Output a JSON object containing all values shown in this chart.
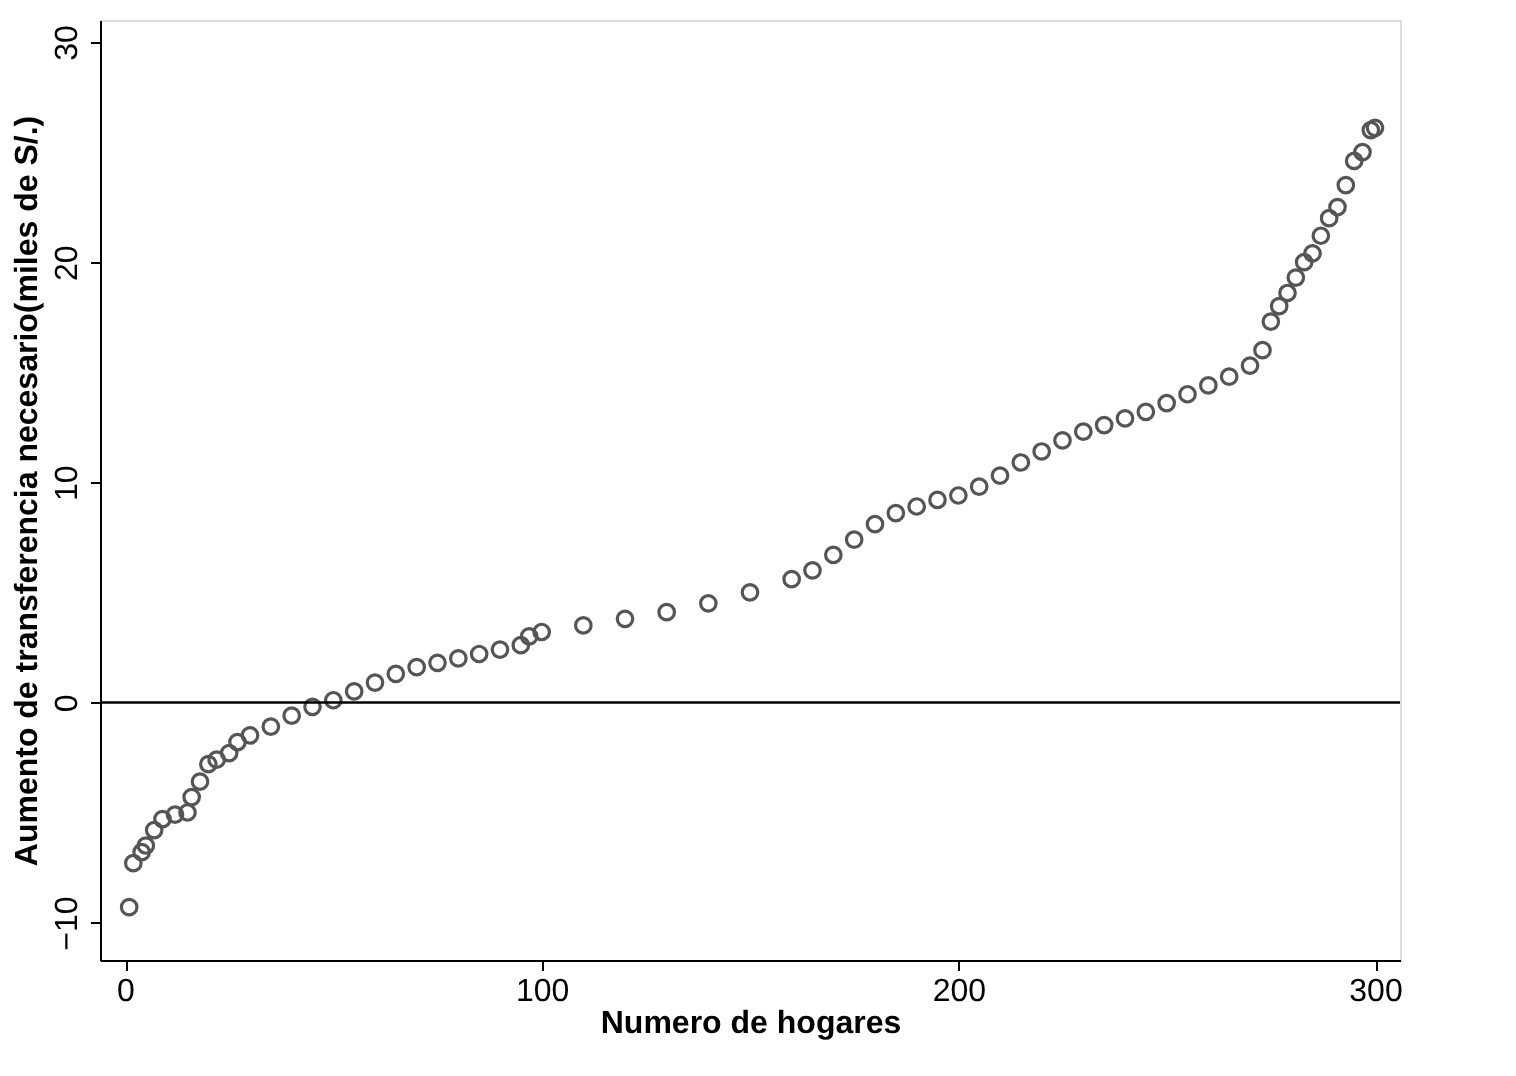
{
  "chart_data": {
    "type": "scatter",
    "xlabel": "Numero de hogares",
    "ylabel": "Aumento de transferencia necesario(miles de S/.)",
    "x": [
      1,
      2,
      4,
      5,
      7,
      9,
      12,
      15,
      16,
      18,
      20,
      22,
      25,
      27,
      30,
      35,
      40,
      45,
      50,
      55,
      60,
      65,
      70,
      75,
      80,
      85,
      90,
      95,
      97,
      100,
      110,
      120,
      130,
      140,
      150,
      160,
      165,
      170,
      175,
      180,
      185,
      190,
      195,
      200,
      205,
      210,
      215,
      220,
      225,
      230,
      235,
      240,
      245,
      250,
      255,
      260,
      265,
      270,
      273,
      275,
      277,
      279,
      281,
      283,
      285,
      287,
      289,
      291,
      293,
      295,
      297,
      299,
      300
    ],
    "series": [
      {
        "color": "#555555",
        "marker": "circle",
        "values": [
          -9.3,
          -7.3,
          -6.8,
          -6.5,
          -5.8,
          -5.3,
          -5.1,
          -5.0,
          -4.3,
          -3.6,
          -2.8,
          -2.6,
          -2.3,
          -1.8,
          -1.5,
          -1.1,
          -0.6,
          -0.2,
          0.1,
          0.5,
          0.9,
          1.3,
          1.6,
          1.8,
          2.0,
          2.2,
          2.4,
          2.6,
          3.0,
          3.2,
          3.5,
          3.8,
          4.1,
          4.5,
          5.0,
          5.6,
          6.0,
          6.7,
          7.4,
          8.1,
          8.6,
          8.9,
          9.2,
          9.4,
          9.8,
          10.3,
          10.9,
          11.4,
          11.9,
          12.3,
          12.6,
          12.9,
          13.2,
          13.6,
          14.0,
          14.4,
          14.8,
          15.3,
          16.0,
          17.3,
          18.0,
          18.6,
          19.3,
          20.0,
          20.4,
          21.2,
          22.0,
          22.5,
          23.5,
          24.6,
          25.0,
          26.0,
          26.1
        ]
      }
    ],
    "xlim": [
      -6,
      306
    ],
    "xticks": [
      0,
      100,
      200,
      300
    ],
    "ylim": [
      -11.7,
      31
    ],
    "yticks": [
      -10,
      0,
      10,
      20,
      30
    ],
    "ref_lines": [
      {
        "axis": "y",
        "value": 0,
        "color": "#000000"
      }
    ],
    "grid": false
  }
}
